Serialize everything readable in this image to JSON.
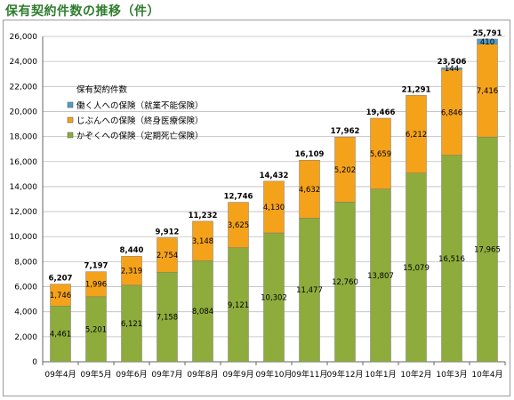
{
  "title": "保有契約件数の推移（件）",
  "colors": {
    "green": "#8dac3c",
    "orange": "#f5a21b",
    "blue": "#4f9cc8",
    "grid": "#bdbdbd"
  },
  "chart_data": {
    "type": "bar",
    "stacked": true,
    "categories": [
      "09年4月",
      "09年5月",
      "09年6月",
      "09年7月",
      "09年8月",
      "09年9月",
      "09年10月",
      "09年11月",
      "09年12月",
      "10年1月",
      "10年2月",
      "10年3月",
      "10年4月"
    ],
    "series": [
      {
        "name": "かぞくへの保険（定期死亡保険）",
        "color": "#8dac3c",
        "values": [
          4461,
          5201,
          6121,
          7158,
          8084,
          9121,
          10302,
          11477,
          12760,
          13807,
          15079,
          16516,
          17965
        ]
      },
      {
        "name": "じぶんへの保険（終身医療保険）",
        "color": "#f5a21b",
        "values": [
          1746,
          1996,
          2319,
          2754,
          3148,
          3625,
          4130,
          4632,
          5202,
          5659,
          6212,
          6846,
          7416
        ]
      },
      {
        "name": "働く人への保険（就業不能保険）",
        "color": "#4f9cc8",
        "values": [
          null,
          null,
          null,
          null,
          null,
          null,
          null,
          null,
          null,
          null,
          null,
          144,
          410
        ]
      }
    ],
    "totals": [
      6207,
      7197,
      8440,
      9912,
      11232,
      12746,
      14432,
      16109,
      17962,
      19466,
      21291,
      23506,
      25791
    ],
    "ylim": [
      0,
      26000
    ],
    "yticks": [
      0,
      2000,
      4000,
      6000,
      8000,
      10000,
      12000,
      14000,
      16000,
      18000,
      20000,
      22000,
      24000,
      26000
    ],
    "legend": {
      "title": "保有契約件数",
      "placement": "upper-left",
      "items": [
        "働く人への保険（就業不能保険）",
        "じぶんへの保険（終身医療保険）",
        "かぞくへの保険（定期死亡保険）"
      ]
    },
    "grid": true
  }
}
